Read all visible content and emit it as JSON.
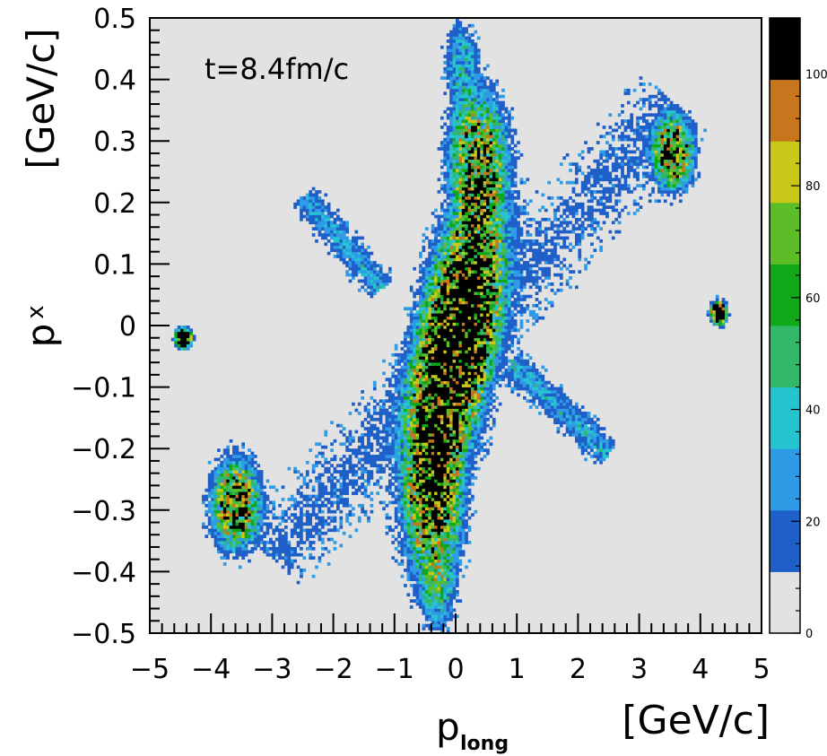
{
  "chart_data": {
    "type": "heatmap",
    "title": "",
    "annotation": "t=8.4fm/c",
    "xlabel": "p",
    "xlabel_sub": "long",
    "xunit": "[GeV/c]",
    "ylabel": "p",
    "ylabel_sub": "x",
    "yunit": "[GeV/c]",
    "xlim": [
      -5,
      5
    ],
    "ylim": [
      -0.5,
      0.5
    ],
    "x_ticks": [
      -5,
      -4,
      -3,
      -2,
      -1,
      0,
      1,
      2,
      3,
      4,
      5
    ],
    "x_tick_labels": [
      "−5",
      "−4",
      "−3",
      "−2",
      "−1",
      "0",
      "1",
      "2",
      "3",
      "4",
      "5"
    ],
    "y_ticks": [
      -0.5,
      -0.4,
      -0.3,
      -0.2,
      -0.1,
      0,
      0.1,
      0.2,
      0.3,
      0.4,
      0.5
    ],
    "y_tick_labels": [
      "−0.5",
      "−0.4",
      "−0.3",
      "−0.2",
      "−0.1",
      "0",
      "0.1",
      "0.2",
      "0.3",
      "0.4",
      "0.5"
    ],
    "grid": false,
    "plot_background": "#e2e2e2",
    "colorbar": {
      "range": [
        0,
        110
      ],
      "tick_values": [
        0,
        20,
        40,
        60,
        80,
        100
      ],
      "tick_labels": [
        "0",
        "20",
        "40",
        "60",
        "80",
        "100"
      ],
      "levels": [
        {
          "min": 0,
          "max": 11,
          "color": "#e2e2e2"
        },
        {
          "min": 11,
          "max": 22,
          "color": "#1f5fc8"
        },
        {
          "min": 22,
          "max": 33,
          "color": "#2f9be6"
        },
        {
          "min": 33,
          "max": 44,
          "color": "#26c4cf"
        },
        {
          "min": 44,
          "max": 55,
          "color": "#33b86a"
        },
        {
          "min": 55,
          "max": 66,
          "color": "#10a818"
        },
        {
          "min": 66,
          "max": 77,
          "color": "#5cbd28"
        },
        {
          "min": 77,
          "max": 88,
          "color": "#c8c81a"
        },
        {
          "min": 88,
          "max": 99,
          "color": "#c8761e"
        },
        {
          "min": 99,
          "max": 110,
          "color": "#000000"
        }
      ]
    },
    "regions": [
      {
        "name": "central-body",
        "x": 0.0,
        "y": -0.03,
        "sx": 0.62,
        "sy": 0.24,
        "rot": -0.18,
        "peak": 130
      },
      {
        "name": "upper-lobe",
        "x": 0.35,
        "y": 0.28,
        "sx": 0.45,
        "sy": 0.1,
        "peak": 75
      },
      {
        "name": "lower-lobe",
        "x": -0.35,
        "y": -0.3,
        "sx": 0.45,
        "sy": 0.12,
        "peak": 75
      },
      {
        "name": "upper-tail",
        "x": 0.1,
        "y": 0.43,
        "sx": 0.25,
        "sy": 0.06,
        "peak": 35
      },
      {
        "name": "lower-tail",
        "x": -0.3,
        "y": -0.44,
        "sx": 0.3,
        "sy": 0.05,
        "peak": 35
      },
      {
        "name": "cluster-upper-right",
        "x": 3.55,
        "y": 0.28,
        "sx": 0.32,
        "sy": 0.055,
        "peak": 90
      },
      {
        "name": "cluster-lower-left",
        "x": -3.6,
        "y": -0.29,
        "sx": 0.38,
        "sy": 0.07,
        "peak": 90
      },
      {
        "name": "fragment-right",
        "x": 4.3,
        "y": 0.02,
        "sx": 0.13,
        "sy": 0.018,
        "peak": 150
      },
      {
        "name": "fragment-left",
        "x": -4.45,
        "y": -0.02,
        "sx": 0.13,
        "sy": 0.016,
        "peak": 150
      }
    ],
    "streaks": [
      {
        "name": "upper-left-arm",
        "from": [
          -2.5,
          0.21
        ],
        "to": [
          -1.2,
          0.06
        ],
        "width": 0.02,
        "peak": 30
      },
      {
        "name": "lower-right-arm",
        "from": [
          0.9,
          -0.06
        ],
        "to": [
          2.5,
          -0.21
        ],
        "width": 0.02,
        "peak": 30
      },
      {
        "name": "diagonal-halo",
        "from": [
          -3.0,
          -0.38
        ],
        "to": [
          3.6,
          0.36
        ],
        "width": 0.06,
        "peak": 12
      }
    ]
  }
}
